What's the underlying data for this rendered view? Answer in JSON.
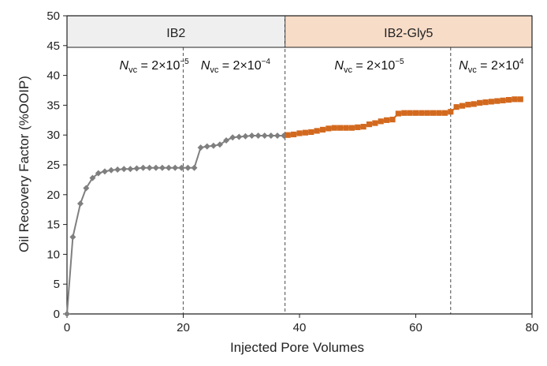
{
  "chart_data": {
    "type": "line",
    "xlabel": "Injected Pore Volumes",
    "ylabel": "Oil Recovery Factor (%OOIP)",
    "xlim": [
      0,
      80
    ],
    "ylim": [
      0,
      50
    ],
    "x_ticks": [
      "0",
      "20",
      "40",
      "60",
      "80"
    ],
    "y_ticks": [
      "0",
      "5",
      "10",
      "15",
      "20",
      "25",
      "30",
      "35",
      "40",
      "45",
      "50"
    ],
    "phases": [
      {
        "label": "IB2",
        "x_start": 0,
        "x_end": 37.5,
        "fill": "#efefef"
      },
      {
        "label": "IB2-Gly5",
        "x_start": 37.5,
        "x_end": 80,
        "fill": "#f7dcc8"
      }
    ],
    "annotations": [
      {
        "prefix": "N",
        "sub": "vc",
        "text": " = 2×10",
        "exp": "−5",
        "x": 15
      },
      {
        "prefix": "N",
        "sub": "vc",
        "text": " = 2×10",
        "exp": "−4",
        "x": 29
      },
      {
        "prefix": "N",
        "sub": "vc",
        "text": " = 2×10",
        "exp": "−5",
        "x": 52
      },
      {
        "prefix": "N",
        "sub": "vc",
        "text": " = 2×10",
        "exp": "4",
        "x": 73
      }
    ],
    "dividers_x": [
      20,
      37.5,
      66
    ],
    "series": [
      {
        "color": "#7f7f7f",
        "marker": "diamond",
        "points": [
          [
            0,
            0
          ],
          [
            1,
            12.9
          ],
          [
            2.3,
            18.5
          ],
          [
            3.3,
            21.1
          ],
          [
            4.4,
            22.8
          ],
          [
            5.4,
            23.6
          ],
          [
            6.5,
            23.9
          ],
          [
            7.6,
            24.1
          ],
          [
            8.7,
            24.2
          ],
          [
            9.8,
            24.3
          ],
          [
            10.9,
            24.3
          ],
          [
            12,
            24.4
          ],
          [
            13.1,
            24.5
          ],
          [
            14.2,
            24.5
          ],
          [
            15.3,
            24.5
          ],
          [
            16.4,
            24.5
          ],
          [
            17.5,
            24.5
          ],
          [
            18.6,
            24.5
          ],
          [
            19.7,
            24.5
          ],
          [
            20.8,
            24.5
          ],
          [
            21.9,
            24.5
          ],
          [
            23,
            27.9
          ],
          [
            24.1,
            28.1
          ],
          [
            25.2,
            28.2
          ],
          [
            26.3,
            28.4
          ],
          [
            27.4,
            29.1
          ],
          [
            28.5,
            29.6
          ],
          [
            29.6,
            29.7
          ],
          [
            30.7,
            29.8
          ],
          [
            31.8,
            29.9
          ],
          [
            32.9,
            29.9
          ],
          [
            34,
            29.9
          ],
          [
            35.1,
            29.9
          ],
          [
            36.2,
            29.9
          ],
          [
            37.3,
            29.9
          ]
        ]
      },
      {
        "color": "#d2691e",
        "marker": "square",
        "points": [
          [
            38,
            30
          ],
          [
            39,
            30.1
          ],
          [
            40,
            30.3
          ],
          [
            41,
            30.4
          ],
          [
            42,
            30.5
          ],
          [
            43,
            30.7
          ],
          [
            44,
            30.9
          ],
          [
            45,
            31.1
          ],
          [
            46,
            31.2
          ],
          [
            47,
            31.2
          ],
          [
            48,
            31.2
          ],
          [
            49,
            31.2
          ],
          [
            50,
            31.3
          ],
          [
            51,
            31.4
          ],
          [
            52,
            31.8
          ],
          [
            53,
            32
          ],
          [
            54,
            32.3
          ],
          [
            55,
            32.5
          ],
          [
            56,
            32.6
          ],
          [
            57,
            33.6
          ],
          [
            58,
            33.7
          ],
          [
            59,
            33.7
          ],
          [
            60,
            33.7
          ],
          [
            61,
            33.7
          ],
          [
            62,
            33.7
          ],
          [
            63,
            33.7
          ],
          [
            64,
            33.7
          ],
          [
            65,
            33.7
          ],
          [
            66,
            33.9
          ],
          [
            67,
            34.7
          ],
          [
            68,
            34.9
          ],
          [
            69,
            35.1
          ],
          [
            70,
            35.2
          ],
          [
            71,
            35.4
          ],
          [
            72,
            35.5
          ],
          [
            73,
            35.6
          ],
          [
            74,
            35.7
          ],
          [
            75,
            35.8
          ],
          [
            76,
            35.9
          ],
          [
            77,
            36
          ],
          [
            78,
            36
          ]
        ]
      }
    ]
  }
}
